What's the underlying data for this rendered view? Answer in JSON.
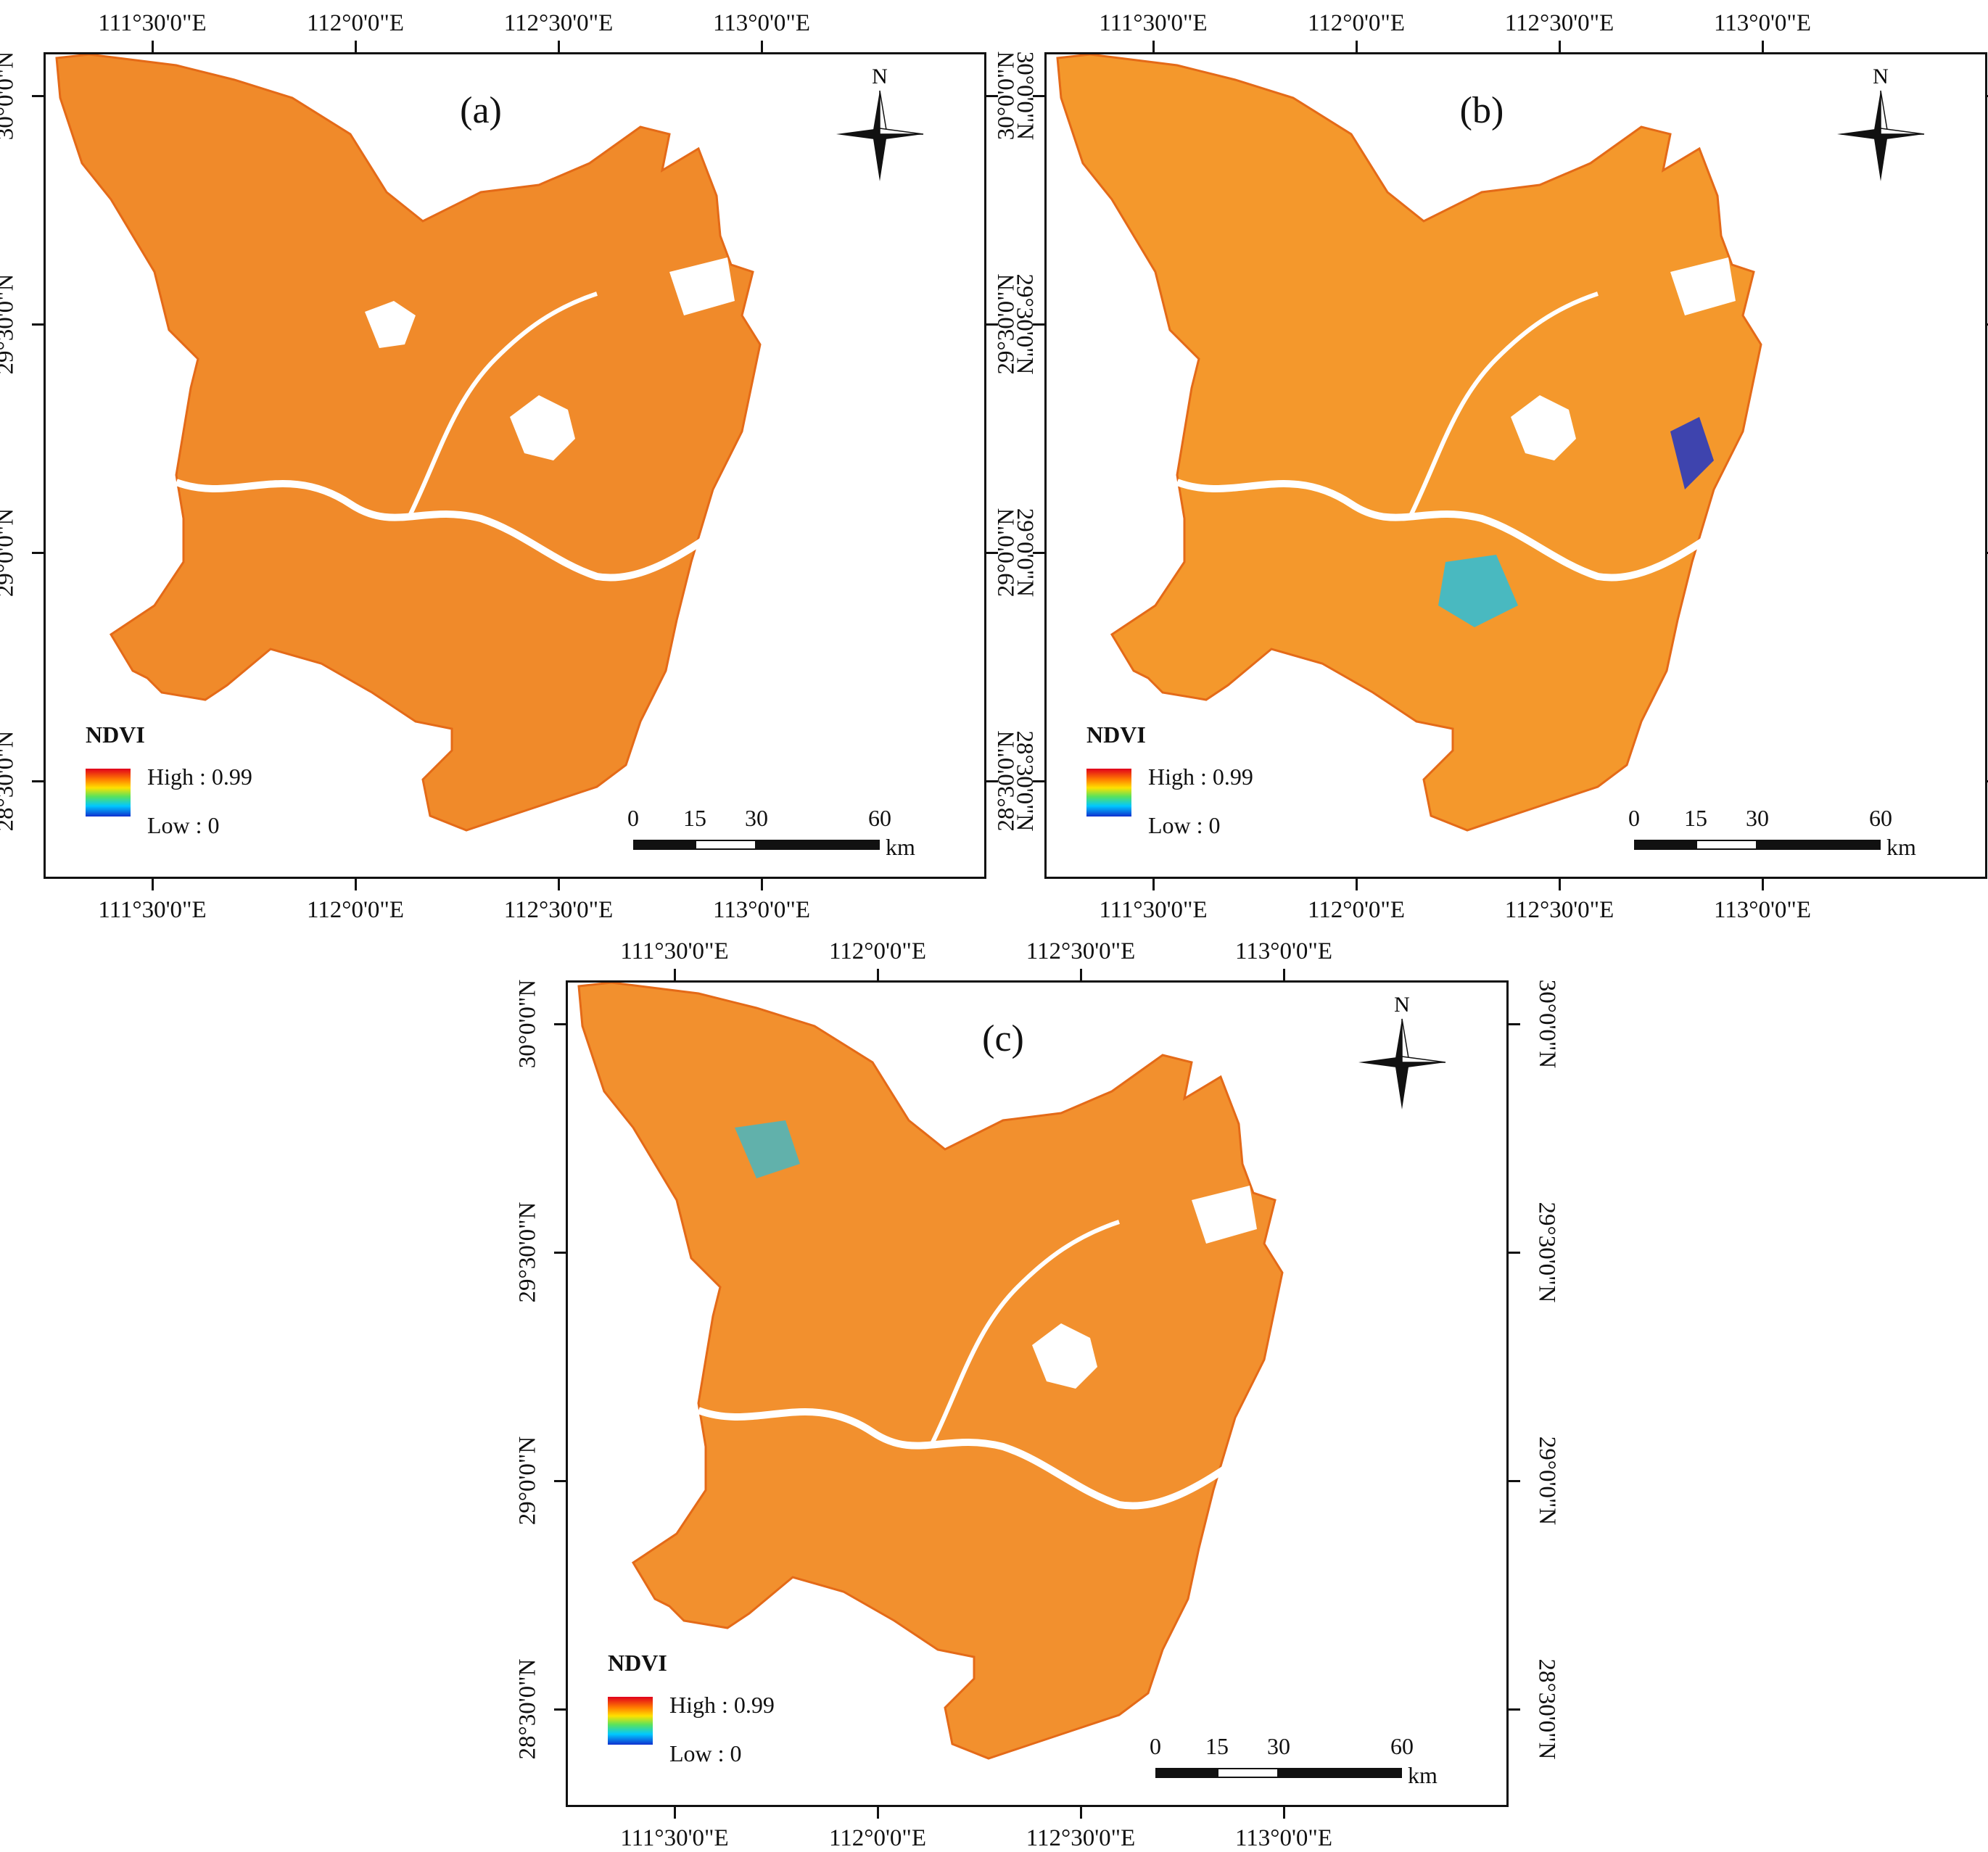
{
  "figure": {
    "panels": [
      {
        "id": "a",
        "label": "(a)",
        "x_ticks": [
          "111°30'0\"E",
          "112°0'0\"E",
          "112°30'0\"E",
          "113°0'0\"E"
        ],
        "y_ticks": [
          "30°0'0\"N",
          "29°30'0\"N",
          "29°0'0\"N",
          "28°30'0\"N"
        ],
        "north": "N",
        "legend": {
          "title": "NDVI",
          "high": "High : 0.99",
          "low": "Low : 0"
        },
        "scale": {
          "ticks": [
            "0",
            "15",
            "30",
            "60"
          ],
          "unit": "km"
        },
        "palette": "a"
      },
      {
        "id": "b",
        "label": "(b)",
        "x_ticks": [
          "111°30'0\"E",
          "112°0'0\"E",
          "112°30'0\"E",
          "113°0'0\"E"
        ],
        "y_ticks": [
          "30°0'0\"N",
          "29°30'0\"N",
          "29°0'0\"N",
          "28°30'0\"N"
        ],
        "north": "N",
        "legend": {
          "title": "NDVI",
          "high": "High : 0.99",
          "low": "Low : 0"
        },
        "scale": {
          "ticks": [
            "0",
            "15",
            "30",
            "60"
          ],
          "unit": "km"
        },
        "palette": "b"
      },
      {
        "id": "c",
        "label": "(c)",
        "x_ticks": [
          "111°30'0\"E",
          "112°0'0\"E",
          "112°30'0\"E",
          "113°0'0\"E"
        ],
        "y_ticks": [
          "30°0'0\"N",
          "29°30'0\"N",
          "29°0'0\"N",
          "28°30'0\"N"
        ],
        "north": "N",
        "legend": {
          "title": "NDVI",
          "high": "High : 0.99",
          "low": "Low : 0"
        },
        "scale": {
          "ticks": [
            "0",
            "15",
            "30",
            "60"
          ],
          "unit": "km"
        },
        "palette": "c"
      }
    ],
    "ndvi_colors": {
      "high": "#e0001c",
      "mid_high": "#ff7a00",
      "mid": "#ffe100",
      "mid_low": "#5be35b",
      "low_mid": "#00c8ff",
      "low": "#1030d0"
    },
    "map_fill": {
      "a": "#f08a2a",
      "b": "#f4982c",
      "c": "#f2902e"
    }
  }
}
